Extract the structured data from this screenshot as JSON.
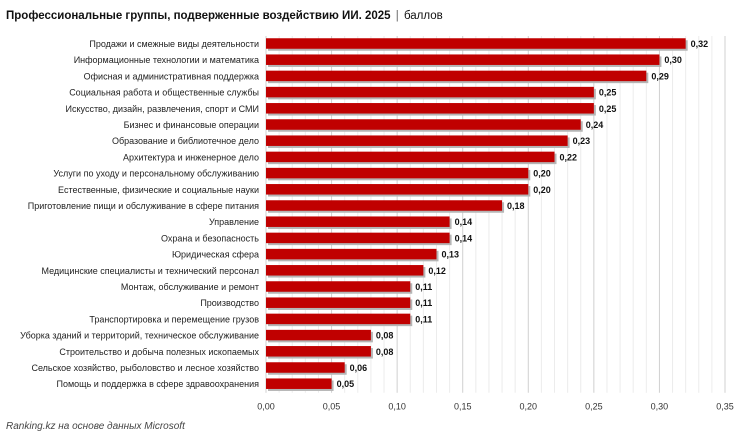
{
  "chart_data": {
    "type": "bar",
    "orientation": "horizontal",
    "title": "Профессиональные группы, подверженные воздействию ИИ. 2025",
    "unit": "баллов",
    "categories": [
      "Продажи и смежные виды деятельности",
      "Информационные технологии и математика",
      "Офисная и административная поддержка",
      "Социальная работа и общественные службы",
      "Искусство, дизайн, развлечения, спорт и СМИ",
      "Бизнес и финансовые операции",
      "Образование и библиотечное дело",
      "Архитектура и инженерное дело",
      "Услуги по уходу и персональному обслуживанию",
      "Естественные, физические и социальные науки",
      "Приготовление пищи и обслуживание в сфере питания",
      "Управление",
      "Охрана и безопасность",
      "Юридическая сфера",
      "Медицинские специалисты и технический персонал",
      "Монтаж, обслуживание и ремонт",
      "Производство",
      "Транспортировка и перемещение грузов",
      "Уборка зданий и территорий, техническое обслуживание",
      "Строительство и добыча полезных ископаемых",
      "Сельское хозяйство, рыболовство и лесное хозяйство",
      "Помощь и поддержка в сфере здравоохранения"
    ],
    "values": [
      0.32,
      0.3,
      0.29,
      0.25,
      0.25,
      0.24,
      0.23,
      0.22,
      0.2,
      0.2,
      0.18,
      0.14,
      0.14,
      0.13,
      0.12,
      0.11,
      0.11,
      0.11,
      0.08,
      0.08,
      0.06,
      0.05
    ],
    "value_labels": [
      "0,32",
      "0,30",
      "0,29",
      "0,25",
      "0,25",
      "0,24",
      "0,23",
      "0,22",
      "0,20",
      "0,20",
      "0,18",
      "0,14",
      "0,14",
      "0,13",
      "0,12",
      "0,11",
      "0,11",
      "0,11",
      "0,08",
      "0,08",
      "0,06",
      "0,05"
    ],
    "xlim": [
      0,
      0.35
    ],
    "xticks": [
      0,
      0.05,
      0.1,
      0.15,
      0.2,
      0.25,
      0.3,
      0.35
    ],
    "xtick_labels": [
      "0,00",
      "0,05",
      "0,10",
      "0,15",
      "0,20",
      "0,25",
      "0,30",
      "0,35"
    ],
    "grid": true,
    "bar_color": "#c00000"
  },
  "source": "Ranking.kz на основе данных Microsoft"
}
